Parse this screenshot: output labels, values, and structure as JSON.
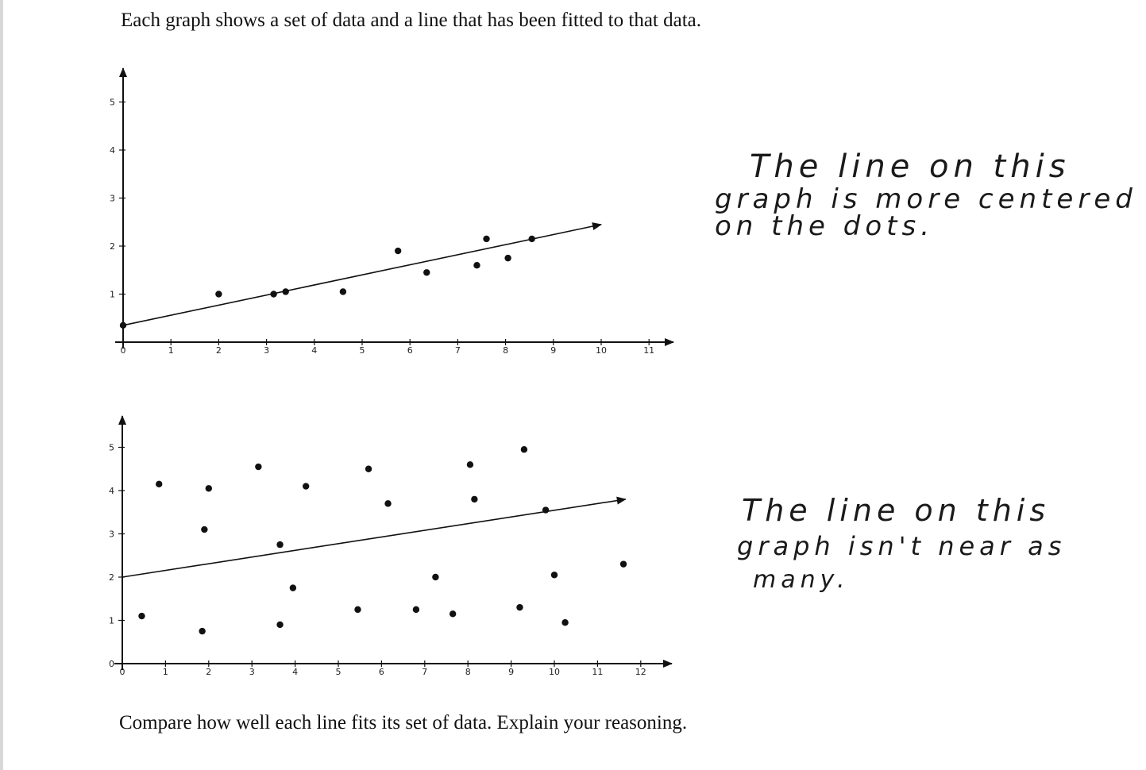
{
  "worksheet": {
    "intro_text": "Each graph shows a set of data and a line that has been fitted to that data.",
    "question_text": "Compare how well each line fits its set of data. Explain your reasoning.",
    "answers": [
      {
        "lines": [
          "The line on this",
          "graph is more centered",
          "on the dots."
        ]
      },
      {
        "lines": [
          "The line on this",
          "graph isn't near as",
          "many."
        ]
      }
    ]
  },
  "chart_data": [
    {
      "type": "scatter",
      "title": "",
      "xlabel": "",
      "ylabel": "",
      "xlim": [
        0,
        11
      ],
      "ylim": [
        0,
        5
      ],
      "x_ticks": [
        "0",
        "1",
        "2",
        "3",
        "4",
        "5",
        "6",
        "7",
        "8",
        "9",
        "10",
        "11"
      ],
      "y_ticks": [
        "1",
        "2",
        "3",
        "4",
        "5"
      ],
      "grid": false,
      "points": [
        {
          "x": 0.0,
          "y": 0.35
        },
        {
          "x": 2.0,
          "y": 1.0
        },
        {
          "x": 3.15,
          "y": 1.0
        },
        {
          "x": 3.4,
          "y": 1.05
        },
        {
          "x": 4.6,
          "y": 1.05
        },
        {
          "x": 5.75,
          "y": 1.9
        },
        {
          "x": 6.35,
          "y": 1.45
        },
        {
          "x": 7.4,
          "y": 1.6
        },
        {
          "x": 7.6,
          "y": 2.15
        },
        {
          "x": 8.05,
          "y": 1.75
        },
        {
          "x": 8.55,
          "y": 2.15
        }
      ],
      "fitted_line": {
        "x": [
          0,
          10
        ],
        "y": [
          0.35,
          2.45
        ]
      }
    },
    {
      "type": "scatter",
      "title": "",
      "xlabel": "",
      "ylabel": "",
      "xlim": [
        0,
        12
      ],
      "ylim": [
        0,
        5
      ],
      "x_ticks": [
        "0",
        "1",
        "2",
        "3",
        "4",
        "5",
        "6",
        "7",
        "8",
        "9",
        "10",
        "11",
        "12"
      ],
      "y_ticks": [
        "0",
        "1",
        "2",
        "3",
        "4",
        "5"
      ],
      "grid": false,
      "points": [
        {
          "x": 0.45,
          "y": 1.1
        },
        {
          "x": 0.85,
          "y": 4.15
        },
        {
          "x": 1.85,
          "y": 0.75
        },
        {
          "x": 1.9,
          "y": 3.1
        },
        {
          "x": 2.0,
          "y": 4.05
        },
        {
          "x": 3.15,
          "y": 4.55
        },
        {
          "x": 3.65,
          "y": 0.9
        },
        {
          "x": 3.65,
          "y": 2.75
        },
        {
          "x": 3.95,
          "y": 1.75
        },
        {
          "x": 4.25,
          "y": 4.1
        },
        {
          "x": 5.45,
          "y": 1.25
        },
        {
          "x": 5.7,
          "y": 4.5
        },
        {
          "x": 6.15,
          "y": 3.7
        },
        {
          "x": 6.8,
          "y": 1.25
        },
        {
          "x": 7.25,
          "y": 2.0
        },
        {
          "x": 7.65,
          "y": 1.15
        },
        {
          "x": 8.05,
          "y": 4.6
        },
        {
          "x": 8.15,
          "y": 3.8
        },
        {
          "x": 9.2,
          "y": 1.3
        },
        {
          "x": 9.3,
          "y": 4.95
        },
        {
          "x": 9.8,
          "y": 3.55
        },
        {
          "x": 10.0,
          "y": 2.05
        },
        {
          "x": 10.25,
          "y": 0.95
        },
        {
          "x": 11.6,
          "y": 2.3
        }
      ],
      "fitted_line": {
        "x": [
          0,
          11.65
        ],
        "y": [
          2.0,
          3.8
        ]
      }
    }
  ]
}
